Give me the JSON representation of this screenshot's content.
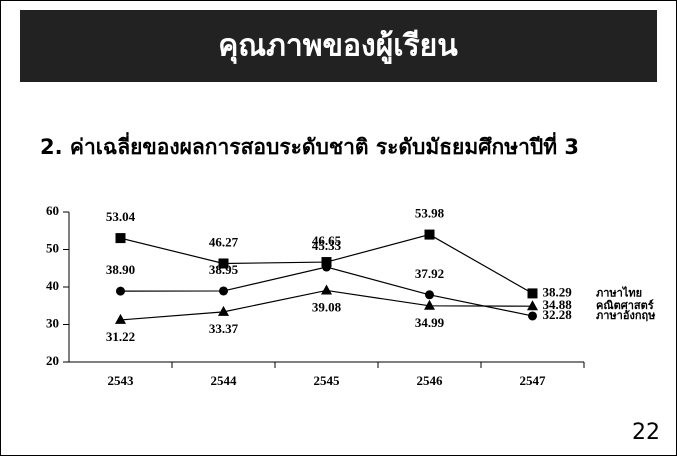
{
  "chart_data": {
    "type": "line",
    "title": "คุณภาพของผู้เรียน",
    "subtitle": "2. ค่าเฉลี่ยของผลการสอบระดับชาติ ระดับมัธยมศึกษาปีที่ 3",
    "categories": [
      "2543",
      "2544",
      "2545",
      "2546",
      "2547"
    ],
    "series": [
      {
        "name": "ภาษาไทย",
        "color": "#000000",
        "marker": "square",
        "values": [
          53.04,
          46.27,
          46.65,
          53.98,
          38.29
        ],
        "value_labels": [
          "53.04",
          "46.27",
          "46.65",
          "53.98",
          "38.29"
        ]
      },
      {
        "name": "คณิตศาสตร์",
        "color": "#000000",
        "marker": "triangle",
        "values": [
          31.22,
          33.37,
          39.08,
          34.99,
          34.88
        ],
        "value_labels": [
          "31.22",
          "33.37",
          "39.08",
          "34.99",
          "34.88"
        ]
      },
      {
        "name": "ภาษาอังกฤษ",
        "color": "#000000",
        "marker": "circle",
        "values": [
          38.9,
          38.95,
          45.33,
          37.92,
          32.28
        ],
        "value_labels": [
          "38.90",
          "38.95",
          "45.33",
          "37.92",
          "32.28"
        ]
      }
    ],
    "ylim": [
      20,
      60
    ],
    "yticks": [
      20,
      30,
      40,
      50,
      60
    ],
    "grid": false
  },
  "page_number": "22"
}
